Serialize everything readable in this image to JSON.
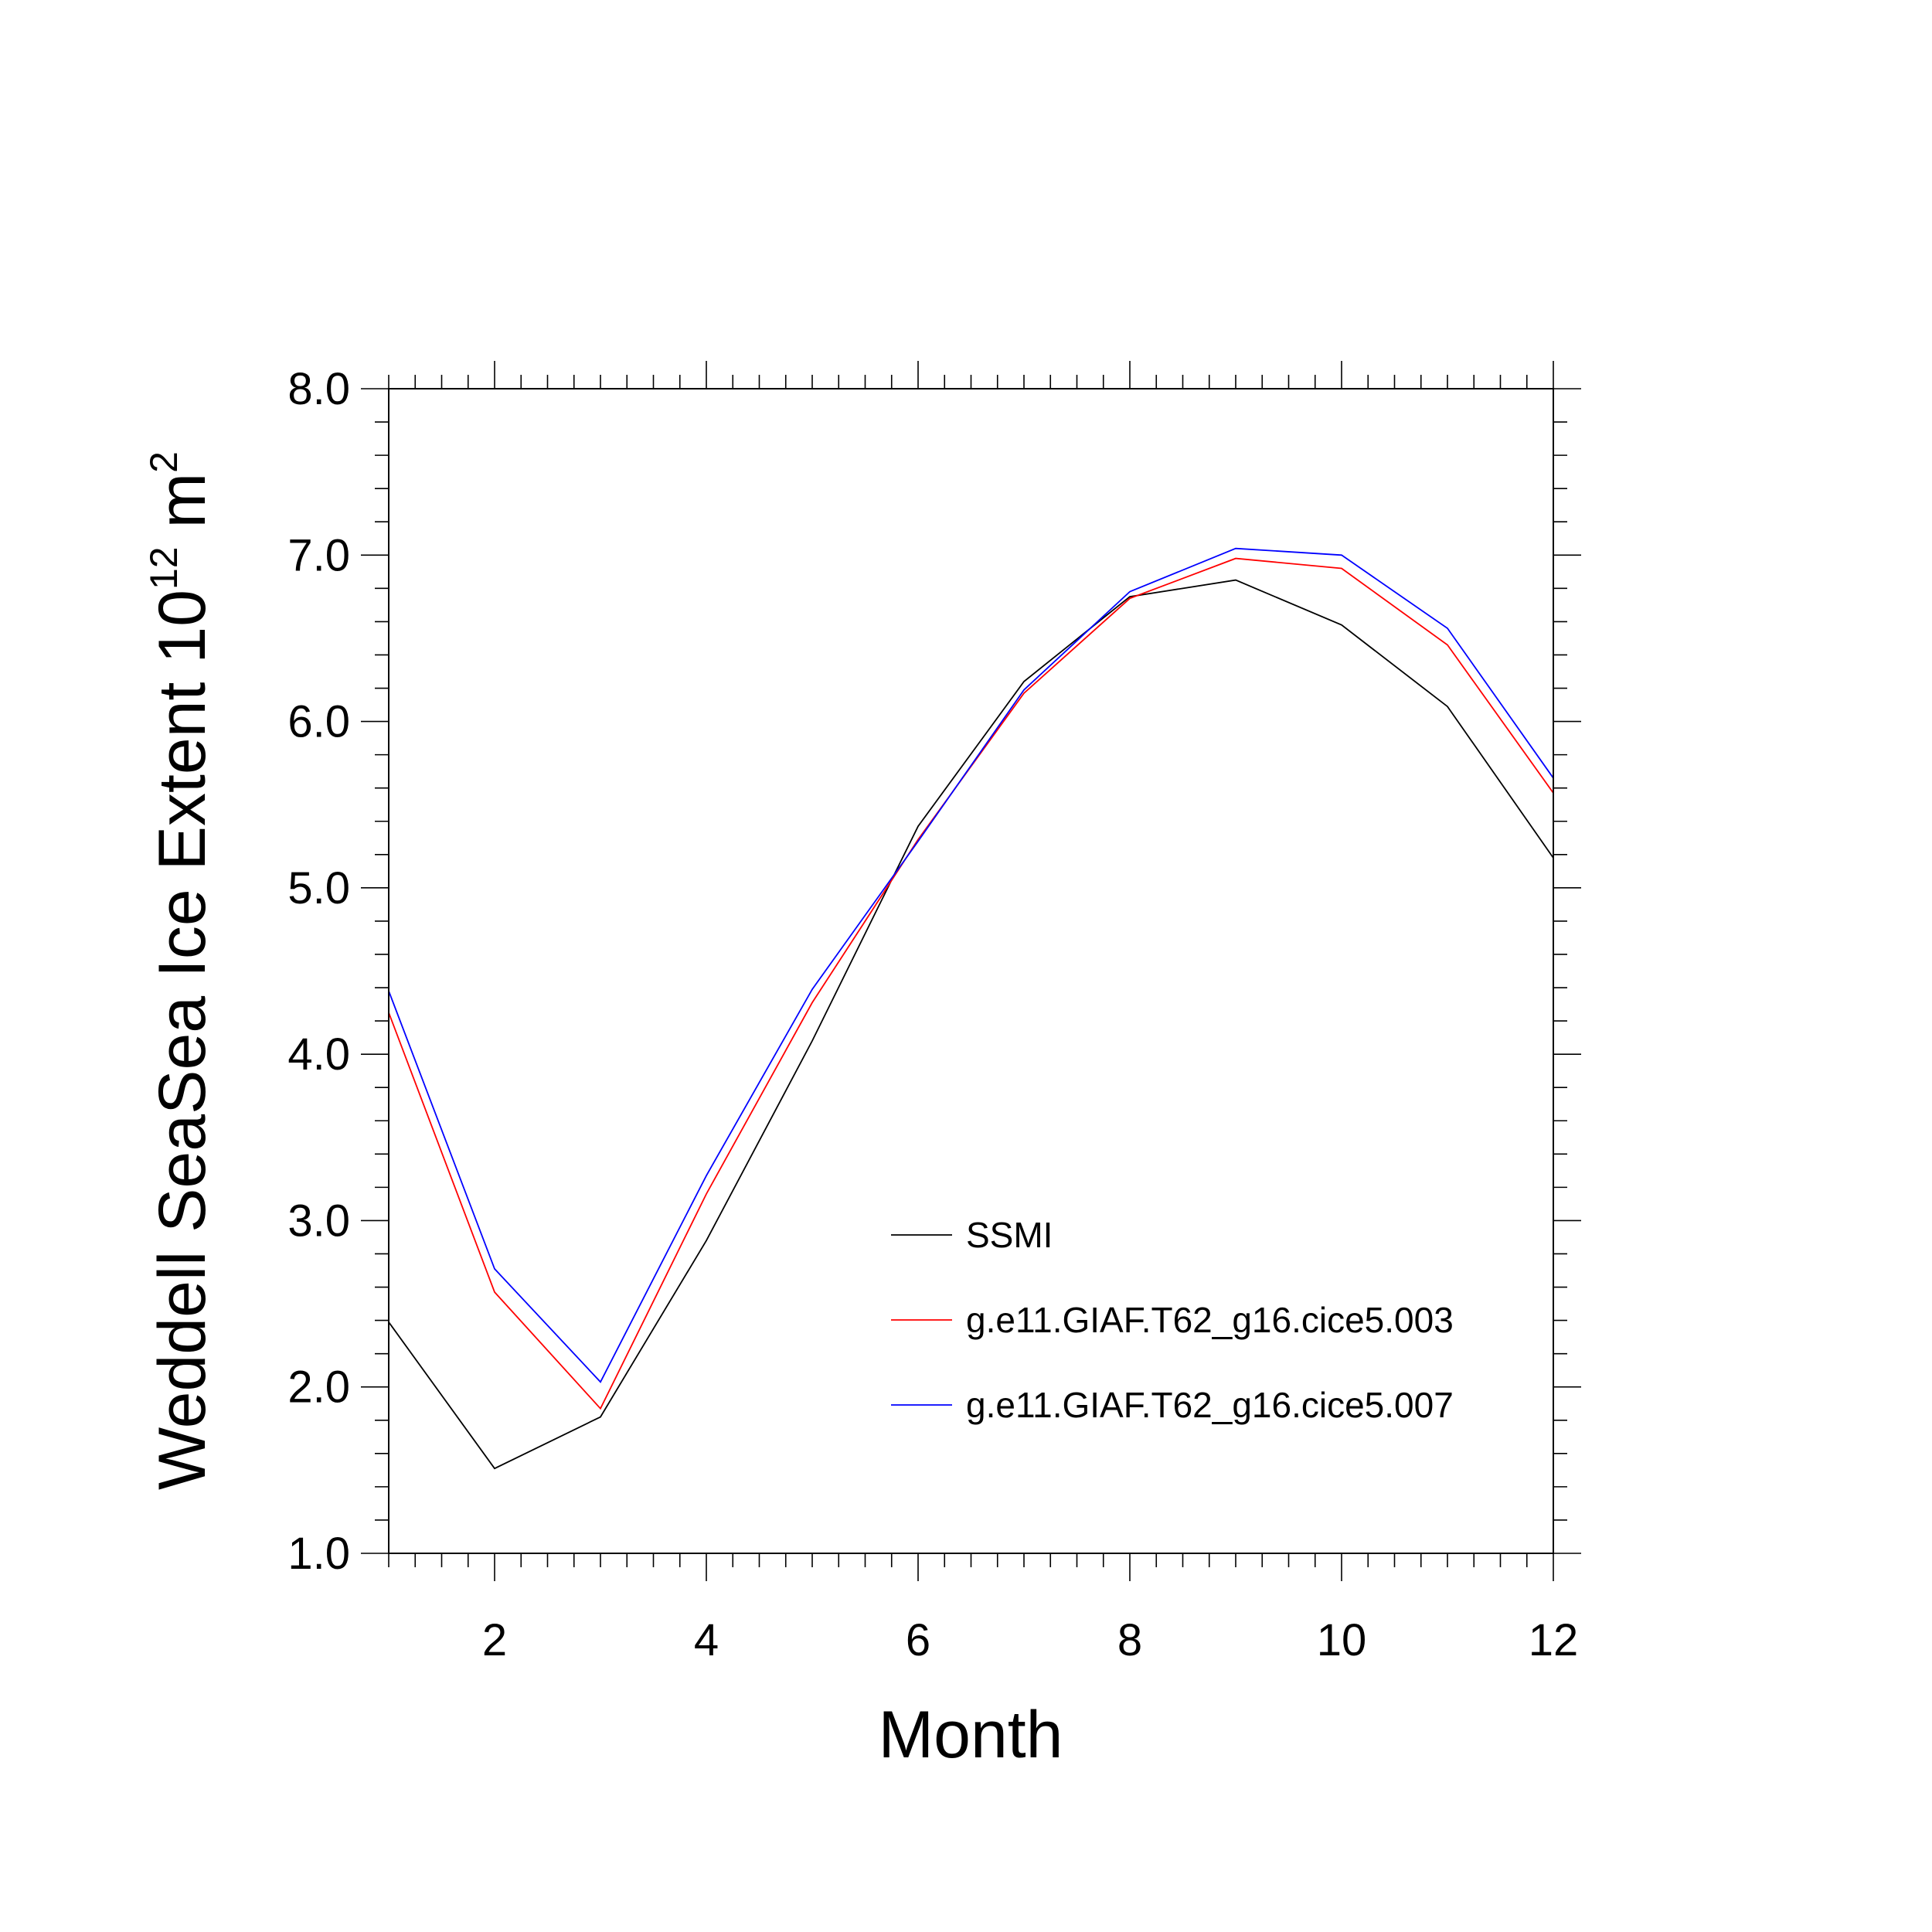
{
  "chart_data": {
    "type": "line",
    "xlabel": "Month",
    "ylabel_main": "Weddell SeaSea Ice Extent 10",
    "ylabel_exp": "12",
    "ylabel_unit": " m",
    "ylabel_unit_exp": "2",
    "xlim": [
      1,
      12
    ],
    "ylim": [
      1.0,
      8.0
    ],
    "x_ticks": [
      2,
      4,
      6,
      8,
      10,
      12
    ],
    "x_tick_labels": [
      "2",
      "4",
      "6",
      "8",
      "10",
      "12"
    ],
    "y_ticks": [
      1.0,
      2.0,
      3.0,
      4.0,
      5.0,
      6.0,
      7.0,
      8.0
    ],
    "y_tick_labels": [
      "1.0",
      "2.0",
      "3.0",
      "4.0",
      "5.0",
      "6.0",
      "7.0",
      "8.0"
    ],
    "legend_position": "lower-right inside plot",
    "x": [
      1,
      2,
      3,
      4,
      5,
      6,
      7,
      8,
      9,
      10,
      11,
      12
    ],
    "series": [
      {
        "name": "SSMI",
        "color": "#000000",
        "values": [
          2.39,
          1.51,
          1.82,
          2.88,
          4.08,
          5.37,
          6.24,
          6.75,
          6.85,
          6.58,
          6.09,
          5.18
        ]
      },
      {
        "name": "g.e11.GIAF.T62_g16.cice5.003",
        "color": "#ff0000",
        "values": [
          4.25,
          2.57,
          1.87,
          3.16,
          4.31,
          5.29,
          6.17,
          6.74,
          6.98,
          6.92,
          6.46,
          5.57
        ]
      },
      {
        "name": "g.e11.GIAF.T62_g16.cice5.007",
        "color": "#0000ff",
        "values": [
          4.38,
          2.71,
          2.03,
          3.27,
          4.39,
          5.28,
          6.19,
          6.78,
          7.04,
          7.0,
          6.56,
          5.66
        ]
      }
    ]
  }
}
